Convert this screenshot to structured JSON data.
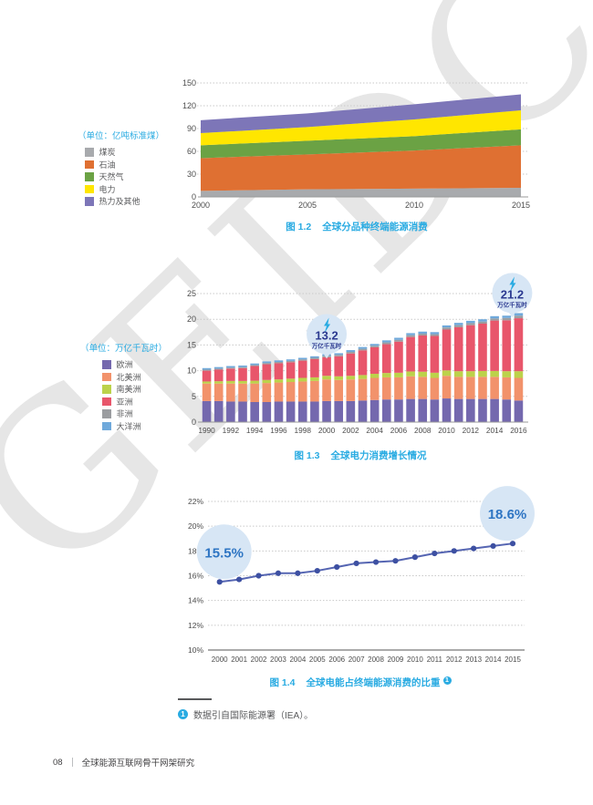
{
  "page": {
    "watermark": "GEIDCO",
    "footnote": {
      "marker": "1",
      "text": "数据引自国际能源署（IEA）。"
    },
    "footer": {
      "page_number": "08",
      "title": "全球能源互联网骨干网架研究"
    }
  },
  "colors": {
    "accent_blue": "#29ABE2",
    "caption_blue": "#29ABE2",
    "gridline": "#C9C9C9",
    "axis_text": "#4D4D4D",
    "legend_text": "#58595B",
    "bubble_bg": "#D7E6F5",
    "bubble_value_text": "#2B3990",
    "bubble_pct_text": "#2E75C3",
    "line": "#5565B2",
    "dot": "#3D50A2"
  },
  "chart_data": [
    {
      "id": "fig-1-2",
      "type": "area",
      "stacked": true,
      "caption": {
        "prefix": "图 1.2",
        "title": "全球分品种终端能源消费"
      },
      "unit_label": "（单位：亿吨标准煤）",
      "x": [
        "2000",
        "2005",
        "2010",
        "2015"
      ],
      "ylim": [
        0,
        150
      ],
      "y_ticks": [
        0,
        30,
        60,
        90,
        120,
        150
      ],
      "grid": "dotted-horizontal",
      "legend_position": "left",
      "series": [
        {
          "name": "煤炭",
          "color": "#A8AAAD",
          "values": [
            8,
            10,
            11,
            12
          ]
        },
        {
          "name": "石油",
          "color": "#DF7032",
          "values": [
            43,
            46,
            50,
            56
          ]
        },
        {
          "name": "天然气",
          "color": "#6BA244",
          "values": [
            17,
            18,
            19,
            21
          ]
        },
        {
          "name": "电力",
          "color": "#FFE600",
          "values": [
            16,
            18,
            22,
            25
          ]
        },
        {
          "name": "热力及其他",
          "color": "#7D76B8",
          "values": [
            17,
            18,
            20,
            21
          ]
        }
      ]
    },
    {
      "id": "fig-1-3",
      "type": "bar",
      "stacked": true,
      "caption": {
        "prefix": "图 1.3",
        "title": "全球电力消费增长情况"
      },
      "unit_label": "（单位：万亿千瓦时）",
      "categories": [
        "1990",
        "1991",
        "1992",
        "1993",
        "1994",
        "1995",
        "1996",
        "1997",
        "1998",
        "1999",
        "2000",
        "2001",
        "2002",
        "2003",
        "2004",
        "2005",
        "2006",
        "2007",
        "2008",
        "2009",
        "2010",
        "2011",
        "2012",
        "2013",
        "2014",
        "2015",
        "2016"
      ],
      "x_label_every": 2,
      "ylim": [
        0,
        25
      ],
      "y_ticks": [
        0,
        5,
        10,
        15,
        20,
        25
      ],
      "grid": "dotted-horizontal",
      "legend_position": "left",
      "series": [
        {
          "name": "欧洲",
          "color": "#7468AE",
          "values": [
            4.1,
            4.1,
            4.0,
            4.0,
            3.9,
            3.9,
            4.0,
            4.0,
            4.0,
            4.0,
            4.1,
            4.1,
            4.1,
            4.2,
            4.3,
            4.4,
            4.4,
            4.5,
            4.5,
            4.4,
            4.6,
            4.5,
            4.5,
            4.5,
            4.5,
            4.4,
            4.2
          ]
        },
        {
          "name": "北美洲",
          "color": "#F2926B",
          "values": [
            3.4,
            3.4,
            3.5,
            3.5,
            3.6,
            3.7,
            3.7,
            3.8,
            3.9,
            4.0,
            4.2,
            4.1,
            4.2,
            4.2,
            4.3,
            4.3,
            4.3,
            4.4,
            4.3,
            4.2,
            4.4,
            4.3,
            4.3,
            4.3,
            4.3,
            4.3,
            4.4
          ]
        },
        {
          "name": "南美洲",
          "color": "#BCD24A",
          "values": [
            0.4,
            0.45,
            0.5,
            0.5,
            0.55,
            0.6,
            0.6,
            0.65,
            0.7,
            0.7,
            0.7,
            0.7,
            0.7,
            0.75,
            0.8,
            0.85,
            0.9,
            0.95,
            1.0,
            1.0,
            1.05,
            1.1,
            1.1,
            1.15,
            1.15,
            1.2,
            1.3
          ]
        },
        {
          "name": "亚洲",
          "color": "#E8566B",
          "values": [
            2.1,
            2.25,
            2.4,
            2.5,
            2.85,
            3.05,
            3.15,
            3.2,
            3.35,
            3.55,
            3.6,
            3.9,
            4.35,
            4.8,
            5.15,
            5.6,
            6.05,
            6.7,
            7.05,
            7.15,
            7.95,
            8.55,
            8.95,
            9.2,
            9.8,
            9.9,
            10.3
          ]
        },
        {
          "name": "非洲",
          "color": "#9B9DA0",
          "values": [
            0.2,
            0.2,
            0.2,
            0.2,
            0.2,
            0.25,
            0.25,
            0.25,
            0.25,
            0.25,
            0.3,
            0.3,
            0.3,
            0.3,
            0.3,
            0.35,
            0.35,
            0.35,
            0.35,
            0.35,
            0.4,
            0.4,
            0.4,
            0.4,
            0.4,
            0.45,
            0.5
          ]
        },
        {
          "name": "大洋洲",
          "color": "#6FA9DB",
          "values": [
            0.3,
            0.3,
            0.3,
            0.3,
            0.3,
            0.3,
            0.3,
            0.3,
            0.3,
            0.3,
            0.3,
            0.3,
            0.35,
            0.35,
            0.35,
            0.4,
            0.4,
            0.4,
            0.4,
            0.4,
            0.4,
            0.45,
            0.45,
            0.45,
            0.45,
            0.45,
            0.5
          ]
        }
      ],
      "annotations": [
        {
          "category": "2000",
          "value": "13.2",
          "unit": "万亿千瓦时",
          "icon": "lightning-icon"
        },
        {
          "category": "2016",
          "value": "21.2",
          "unit": "万亿千瓦时",
          "icon": "lightning-icon"
        }
      ]
    },
    {
      "id": "fig-1-4",
      "type": "line",
      "caption": {
        "prefix": "图 1.4",
        "title": "全球电能占终端能源消费的比重",
        "footnote_marker": "1"
      },
      "categories": [
        "2000",
        "2001",
        "2002",
        "2003",
        "2004",
        "2005",
        "2006",
        "2007",
        "2008",
        "2009",
        "2010",
        "2011",
        "2012",
        "2013",
        "2014",
        "2015"
      ],
      "values": [
        15.5,
        15.7,
        16.0,
        16.2,
        16.2,
        16.4,
        16.7,
        17.0,
        17.1,
        17.2,
        17.5,
        17.8,
        18.0,
        18.2,
        18.4,
        18.6
      ],
      "ylim": [
        10,
        22
      ],
      "y_ticks": [
        "10%",
        "12%",
        "14%",
        "16%",
        "18%",
        "20%",
        "22%"
      ],
      "grid": "dotted-horizontal",
      "annotations": [
        {
          "category": "2000",
          "label": "15.5%"
        },
        {
          "category": "2015",
          "label": "18.6%"
        }
      ]
    }
  ]
}
